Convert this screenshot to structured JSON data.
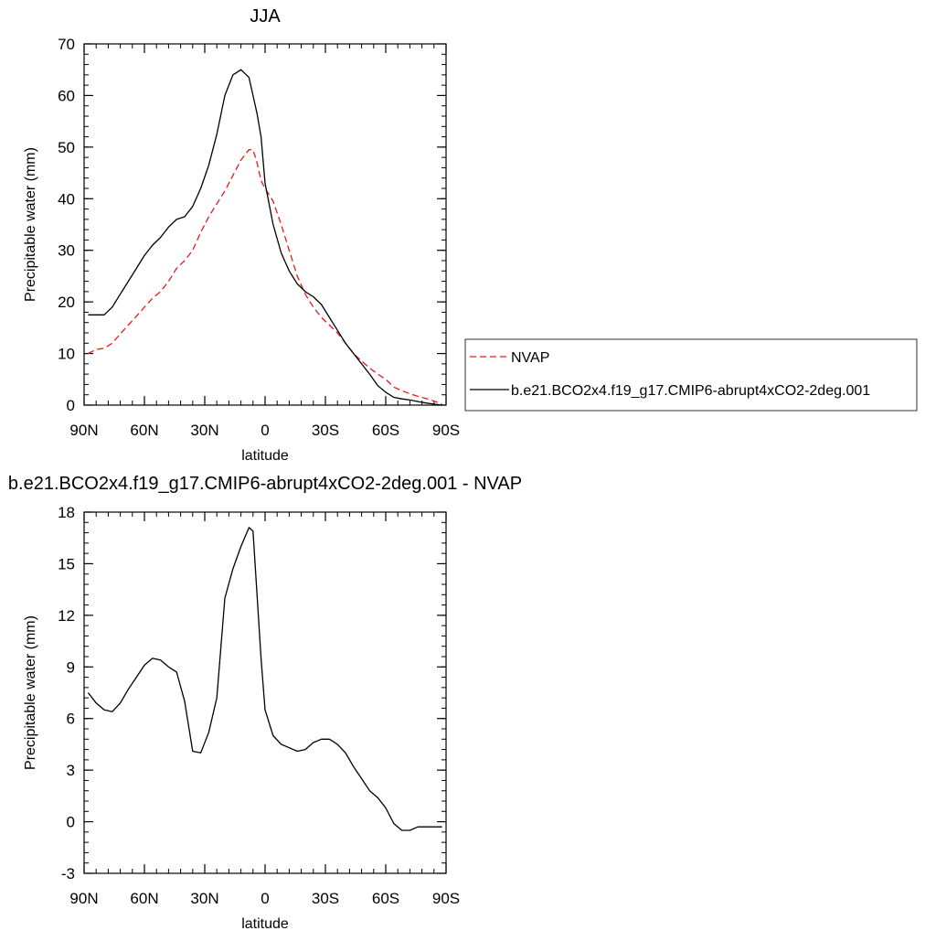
{
  "chart_data": [
    {
      "type": "line",
      "title": "JJA",
      "xlabel": "latitude",
      "ylabel": "Precipitable water (mm)",
      "xlim": [
        90,
        -90
      ],
      "ylim": [
        0,
        70
      ],
      "x_ticks": [
        90,
        60,
        30,
        0,
        -30,
        -60,
        -90
      ],
      "x_tick_labels": [
        "90N",
        "60N",
        "30N",
        "0",
        "30S",
        "60S",
        "90S"
      ],
      "y_ticks": [
        0,
        10,
        20,
        30,
        40,
        50,
        60,
        70
      ],
      "y_tick_labels": [
        "0",
        "10",
        "20",
        "30",
        "40",
        "50",
        "60",
        "70"
      ],
      "grid": false,
      "legend_position": "right",
      "series": [
        {
          "name": "NVAP",
          "color": "#e8191a",
          "dash": "dashed",
          "x": [
            88,
            84,
            80,
            76,
            72,
            68,
            64,
            60,
            56,
            52,
            48,
            44,
            40,
            36,
            32,
            28,
            24,
            20,
            16,
            12,
            8,
            6,
            4,
            2,
            0,
            -4,
            -8,
            -12,
            -16,
            -20,
            -24,
            -28,
            -32,
            -36,
            -40,
            -44,
            -48,
            -52,
            -56,
            -60,
            -64,
            -68,
            -72,
            -76,
            -80,
            -84,
            -88
          ],
          "values": [
            10.0,
            10.8,
            11.0,
            12.0,
            13.8,
            15.5,
            17.2,
            19.0,
            20.7,
            22.0,
            24.0,
            26.5,
            28.0,
            30.0,
            33.5,
            36.5,
            39.0,
            41.5,
            44.5,
            47.5,
            49.5,
            49.5,
            47.0,
            43.5,
            42.0,
            39.5,
            35.0,
            30.0,
            25.0,
            21.5,
            19.0,
            17.0,
            15.5,
            14.0,
            12.0,
            10.0,
            8.5,
            7.2,
            6.0,
            5.0,
            3.5,
            2.8,
            2.2,
            1.7,
            1.3,
            0.8,
            0.2
          ]
        },
        {
          "name": "b.e21.BCO2x4.f19_g17.CMIP6-abrupt4xCO2-2deg.001",
          "color": "#000000",
          "dash": "solid",
          "x": [
            88,
            84,
            80,
            76,
            72,
            68,
            64,
            60,
            56,
            52,
            48,
            44,
            40,
            36,
            32,
            28,
            24,
            20,
            16,
            12,
            8,
            6,
            4,
            2,
            0,
            -4,
            -8,
            -12,
            -16,
            -20,
            -24,
            -28,
            -32,
            -36,
            -40,
            -44,
            -48,
            -52,
            -56,
            -60,
            -64,
            -68,
            -72,
            -76,
            -80,
            -84,
            -88
          ],
          "values": [
            17.5,
            17.5,
            17.5,
            19.0,
            21.5,
            24.0,
            26.5,
            29.0,
            31.0,
            32.5,
            34.5,
            36.0,
            36.5,
            38.5,
            42.0,
            46.5,
            52.5,
            60.0,
            64.0,
            65.0,
            63.5,
            60.0,
            56.5,
            52.0,
            43.0,
            35.0,
            29.5,
            26.0,
            23.5,
            22.0,
            21.0,
            19.5,
            17.0,
            14.5,
            12.0,
            10.0,
            8.0,
            6.0,
            3.8,
            2.5,
            1.5,
            1.2,
            1.0,
            0.7,
            0.4,
            0.2,
            0.0
          ]
        }
      ]
    },
    {
      "type": "line",
      "title": "b.e21.BCO2x4.f19_g17.CMIP6-abrupt4xCO2-2deg.001 - NVAP",
      "xlabel": "latitude",
      "ylabel": "Precipitable water (mm)",
      "xlim": [
        90,
        -90
      ],
      "ylim": [
        -3,
        18
      ],
      "x_ticks": [
        90,
        60,
        30,
        0,
        -30,
        -60,
        -90
      ],
      "x_tick_labels": [
        "90N",
        "60N",
        "30N",
        "0",
        "30S",
        "60S",
        "90S"
      ],
      "y_ticks": [
        -3,
        0,
        3,
        6,
        9,
        12,
        15,
        18
      ],
      "y_tick_labels": [
        "-3",
        "0",
        "3",
        "6",
        "9",
        "12",
        "15",
        "18"
      ],
      "grid": false,
      "series": [
        {
          "color": "#000000",
          "dash": "solid",
          "x": [
            88,
            84,
            80,
            76,
            72,
            68,
            64,
            60,
            56,
            52,
            48,
            44,
            40,
            36,
            32,
            28,
            24,
            20,
            16,
            12,
            8,
            6,
            4,
            2,
            0,
            -4,
            -8,
            -12,
            -16,
            -20,
            -24,
            -28,
            -32,
            -36,
            -40,
            -44,
            -48,
            -52,
            -56,
            -60,
            -64,
            -68,
            -72,
            -76,
            -80,
            -84,
            -88
          ],
          "values": [
            7.5,
            6.9,
            6.5,
            6.4,
            6.9,
            7.7,
            8.4,
            9.1,
            9.5,
            9.4,
            9.0,
            8.7,
            7.0,
            4.1,
            4.0,
            5.2,
            7.2,
            13.0,
            14.7,
            16.0,
            17.1,
            16.9,
            13.2,
            9.5,
            6.5,
            5.0,
            4.5,
            4.3,
            4.1,
            4.2,
            4.6,
            4.8,
            4.8,
            4.5,
            4.0,
            3.2,
            2.5,
            1.8,
            1.4,
            0.8,
            -0.1,
            -0.5,
            -0.5,
            -0.3,
            -0.3,
            -0.3,
            -0.3
          ]
        }
      ]
    }
  ]
}
